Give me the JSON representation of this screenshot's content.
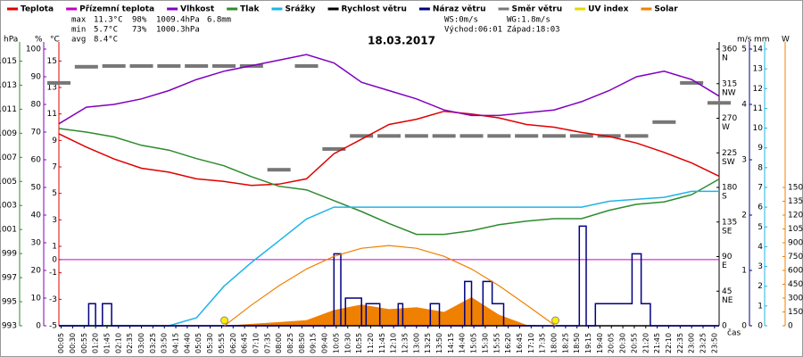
{
  "chart_data": {
    "type": "multi",
    "title": "18.03.2017",
    "x_label": "čas",
    "xlim": [
      0,
      1440
    ],
    "xticks": [
      {
        "value": 5,
        "label": "00:05"
      },
      {
        "value": 30,
        "label": "00:30"
      },
      {
        "value": 55,
        "label": "00:55"
      },
      {
        "value": 80,
        "label": "01:20"
      },
      {
        "value": 105,
        "label": "01:45"
      },
      {
        "value": 130,
        "label": "02:10"
      },
      {
        "value": 155,
        "label": "02:35"
      },
      {
        "value": 180,
        "label": "03:00"
      },
      {
        "value": 205,
        "label": "03:25"
      },
      {
        "value": 230,
        "label": "03:50"
      },
      {
        "value": 255,
        "label": "04:15"
      },
      {
        "value": 280,
        "label": "04:40"
      },
      {
        "value": 305,
        "label": "05:05"
      },
      {
        "value": 330,
        "label": "05:30"
      },
      {
        "value": 355,
        "label": "05:55"
      },
      {
        "value": 380,
        "label": "06:20"
      },
      {
        "value": 405,
        "label": "06:45"
      },
      {
        "value": 430,
        "label": "07:10"
      },
      {
        "value": 455,
        "label": "07:35"
      },
      {
        "value": 480,
        "label": "08:00"
      },
      {
        "value": 505,
        "label": "08:25"
      },
      {
        "value": 530,
        "label": "08:50"
      },
      {
        "value": 555,
        "label": "09:15"
      },
      {
        "value": 580,
        "label": "09:40"
      },
      {
        "value": 605,
        "label": "10:05"
      },
      {
        "value": 630,
        "label": "10:30"
      },
      {
        "value": 655,
        "label": "10:55"
      },
      {
        "value": 680,
        "label": "11:20"
      },
      {
        "value": 705,
        "label": "11:45"
      },
      {
        "value": 730,
        "label": "12:10"
      },
      {
        "value": 755,
        "label": "12:35"
      },
      {
        "value": 780,
        "label": "13:00"
      },
      {
        "value": 805,
        "label": "13:25"
      },
      {
        "value": 830,
        "label": "13:50"
      },
      {
        "value": 855,
        "label": "14:15"
      },
      {
        "value": 880,
        "label": "14:40"
      },
      {
        "value": 905,
        "label": "15:05"
      },
      {
        "value": 930,
        "label": "15:30"
      },
      {
        "value": 955,
        "label": "15:55"
      },
      {
        "value": 980,
        "label": "16:20"
      },
      {
        "value": 1005,
        "label": "16:45"
      },
      {
        "value": 1030,
        "label": "17:10"
      },
      {
        "value": 1055,
        "label": "17:35"
      },
      {
        "value": 1080,
        "label": "18:00"
      },
      {
        "value": 1105,
        "label": "18:25"
      },
      {
        "value": 1130,
        "label": "18:50"
      },
      {
        "value": 1155,
        "label": "19:15"
      },
      {
        "value": 1180,
        "label": "19:40"
      },
      {
        "value": 1205,
        "label": "20:05"
      },
      {
        "value": 1230,
        "label": "20:30"
      },
      {
        "value": 1255,
        "label": "20:55"
      },
      {
        "value": 1280,
        "label": "21:20"
      },
      {
        "value": 1305,
        "label": "21:45"
      },
      {
        "value": 1330,
        "label": "22:10"
      },
      {
        "value": 1355,
        "label": "22:35"
      },
      {
        "value": 1380,
        "label": "23:00"
      },
      {
        "value": 1405,
        "label": "23:25"
      },
      {
        "value": 1430,
        "label": "23:50"
      }
    ],
    "y_axes": [
      {
        "label": "hPa",
        "color": "#2e8b2e",
        "lim": [
          993,
          1016
        ],
        "ticks": [
          993,
          995,
          997,
          999,
          1001,
          1003,
          1005,
          1007,
          1009,
          1011,
          1013,
          1015
        ]
      },
      {
        "label": "%",
        "color": "#8000c0",
        "lim": [
          0,
          100
        ],
        "ticks": [
          0,
          10,
          20,
          30,
          40,
          50,
          60,
          70,
          80,
          90,
          100
        ]
      },
      {
        "label": "°C",
        "color": "#e00000",
        "lim": [
          -5,
          15.9
        ],
        "ticks": [
          -5,
          -3,
          -1,
          0,
          1,
          3,
          5,
          7,
          9,
          11,
          13,
          15
        ]
      },
      {
        "color": "#000000",
        "lim": [
          0,
          360
        ],
        "ticks": [
          0,
          45,
          90,
          135,
          180,
          225,
          270,
          315,
          360
        ],
        "directions": [
          "NE",
          "E",
          "SE",
          "S",
          "SW",
          "W",
          "NW",
          "N"
        ]
      },
      {
        "label": "m/s",
        "color": "#000080",
        "lim": [
          0,
          5
        ],
        "ticks": [
          0,
          1,
          2,
          3,
          4,
          5
        ]
      },
      {
        "label": "mm",
        "color": "#1eb4e6",
        "lim": [
          0,
          14
        ],
        "ticks": [
          0,
          1,
          2,
          3,
          4,
          5,
          6,
          7,
          8,
          9,
          10,
          11,
          12,
          13,
          14
        ]
      },
      {
        "label": "W",
        "color": "#f08000",
        "lim": [
          0,
          3000
        ],
        "ticks": [
          0,
          150,
          300,
          450,
          600,
          750,
          900,
          1050,
          1200,
          1350,
          1500
        ]
      }
    ],
    "x": [
      0,
      60,
      120,
      180,
      240,
      300,
      360,
      420,
      480,
      540,
      600,
      660,
      720,
      780,
      840,
      900,
      960,
      1020,
      1080,
      1140,
      1200,
      1260,
      1320,
      1380,
      1440
    ],
    "series": [
      {
        "name": "Teplota",
        "color": "#e00000",
        "axis": 2,
        "values": [
          9.5,
          8.5,
          7.6,
          6.9,
          6.6,
          6.1,
          5.9,
          5.6,
          5.7,
          6.1,
          8.0,
          9.1,
          10.2,
          10.6,
          11.2,
          11.0,
          10.7,
          10.2,
          10.0,
          9.6,
          9.3,
          8.8,
          8.1,
          7.3,
          6.3
        ]
      },
      {
        "name": "Přízemní teplota",
        "color": "#c000c0"
      },
      {
        "name": "Vlhkost",
        "color": "#8000c0",
        "axis": 1,
        "values": [
          73,
          79,
          80,
          82,
          85,
          89,
          92,
          94,
          96,
          98,
          95,
          88,
          85,
          82,
          78,
          76,
          76,
          77,
          78,
          81,
          85,
          90,
          92,
          89,
          83
        ]
      },
      {
        "name": "Tlak",
        "color": "#2e8b2e",
        "axis": 0,
        "values": [
          1009.4,
          1009.1,
          1008.7,
          1008.0,
          1007.6,
          1006.9,
          1006.3,
          1005.4,
          1004.6,
          1004.3,
          1003.4,
          1002.5,
          1001.5,
          1000.6,
          1000.6,
          1000.9,
          1001.4,
          1001.7,
          1001.9,
          1001.9,
          1002.6,
          1003.1,
          1003.3,
          1003.9,
          1005.2
        ]
      },
      {
        "name": "Srážky",
        "color": "#1eb4e6",
        "axis": 5,
        "values": [
          0,
          0,
          0,
          0,
          0,
          0.4,
          2.0,
          3.2,
          4.3,
          5.4,
          6.0,
          6.0,
          6.0,
          6.0,
          6.0,
          6.0,
          6.0,
          6.0,
          6.0,
          6.0,
          6.3,
          6.4,
          6.5,
          6.8,
          6.8
        ]
      },
      {
        "name": "Rychlost větru",
        "color": "#000000",
        "axis": 4,
        "values": [
          0,
          0,
          0,
          0,
          0,
          0,
          0,
          0,
          0,
          0,
          0,
          0,
          0,
          0,
          0,
          0,
          0,
          0,
          0,
          0,
          0,
          0,
          0,
          0,
          0
        ]
      },
      {
        "name": "Náraz větru",
        "color": "#000080",
        "axis": 4,
        "x": [
          0,
          65,
          65,
          80,
          80,
          95,
          95,
          115,
          115,
          600,
          600,
          615,
          615,
          625,
          625,
          660,
          660,
          670,
          670,
          700,
          700,
          740,
          740,
          750,
          750,
          810,
          810,
          830,
          830,
          885,
          885,
          900,
          900,
          925,
          925,
          945,
          945,
          970,
          970,
          1135,
          1135,
          1150,
          1150,
          1170,
          1170,
          1250,
          1250,
          1270,
          1270,
          1290,
          1290,
          1440
        ],
        "values": [
          0,
          0,
          0.4,
          0.4,
          0,
          0,
          0.4,
          0.4,
          0,
          0,
          1.3,
          1.3,
          0,
          0,
          0.5,
          0.5,
          0,
          0,
          0.4,
          0.4,
          0,
          0,
          0.4,
          0.4,
          0,
          0,
          0.4,
          0.4,
          0,
          0,
          0.8,
          0.8,
          0,
          0,
          0.8,
          0.8,
          0.4,
          0.4,
          0,
          0,
          1.8,
          1.8,
          0,
          0,
          0.4,
          0.4,
          1.3,
          1.3,
          0.4,
          0.4,
          0,
          0
        ]
      },
      {
        "name": "Směr větru",
        "color": "#777777",
        "axis": 3,
        "style": "dash",
        "values": [
          316,
          337,
          338,
          338,
          338,
          338,
          338,
          338,
          203,
          338,
          230,
          247,
          247,
          247,
          247,
          247,
          247,
          247,
          247,
          247,
          247,
          247,
          265,
          316,
          290
        ]
      },
      {
        "name": "UV index",
        "color": "#e8d800"
      },
      {
        "name": "Solar",
        "color": "#f08000",
        "axis": 6,
        "style": "area",
        "values": [
          0,
          0,
          0,
          0,
          0,
          0,
          0,
          20,
          40,
          60,
          170,
          230,
          180,
          200,
          150,
          310,
          120,
          10,
          0,
          0,
          0,
          0,
          0,
          0,
          0
        ]
      }
    ],
    "solar_clear_sky": {
      "color": "#f08000",
      "axis": 6,
      "x": [
        361,
        420,
        480,
        540,
        600,
        660,
        720,
        780,
        840,
        900,
        960,
        1020,
        1083
      ],
      "values": [
        0,
        225,
        435,
        615,
        753,
        840,
        870,
        840,
        753,
        615,
        435,
        225,
        0
      ]
    },
    "sun_markers": [
      361,
      1083
    ],
    "zero_line": {
      "axis": 2,
      "value": 0,
      "color": "#d000d0"
    },
    "stats": [
      {
        "label": "max",
        "temp": "11.3°C",
        "humidity": "98%",
        "pressure": "1009.4hPa",
        "rain": "6.8mm"
      },
      {
        "label": "min",
        "temp": "5.7°C",
        "humidity": "73%",
        "pressure": "1000.3hPa"
      },
      {
        "label": "avg",
        "temp": "8.4°C"
      }
    ],
    "wind_info": [
      "WS:0m/s",
      "WG:1.8m/s"
    ],
    "sun_info": [
      "Východ:06:01",
      "Západ:18:03"
    ]
  }
}
